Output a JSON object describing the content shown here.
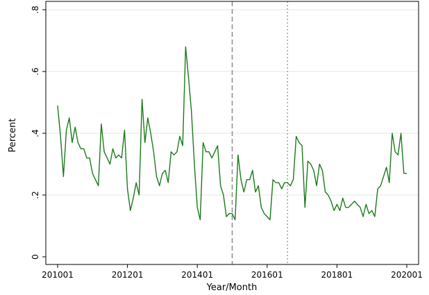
{
  "chart_data": {
    "type": "line",
    "title": "",
    "xlabel": "Year/Month",
    "ylabel": "Percent",
    "xlim": [
      "2010-01",
      "2020-01"
    ],
    "ylim": [
      0,
      0.8
    ],
    "x_tick_labels": [
      "201001",
      "201201",
      "201401",
      "201601",
      "201801",
      "202001"
    ],
    "x_tick_values": [
      "2010-01",
      "2012-01",
      "2014-01",
      "2016-01",
      "2018-01",
      "2020-01"
    ],
    "y_tick_labels": [
      "0",
      ".2",
      ".4",
      ".6",
      ".8"
    ],
    "y_tick_values": [
      0,
      0.2,
      0.4,
      0.6,
      0.8
    ],
    "grid": "horizontal",
    "reference_lines": [
      {
        "x": "2015-01",
        "style": "dashed"
      },
      {
        "x": "2016-08",
        "style": "dotted"
      }
    ],
    "line_color": "#1a7a1a",
    "x": [
      "2010-01",
      "2010-02",
      "2010-03",
      "2010-04",
      "2010-05",
      "2010-06",
      "2010-07",
      "2010-08",
      "2010-09",
      "2010-10",
      "2010-11",
      "2010-12",
      "2011-01",
      "2011-02",
      "2011-03",
      "2011-04",
      "2011-05",
      "2011-06",
      "2011-07",
      "2011-08",
      "2011-09",
      "2011-10",
      "2011-11",
      "2011-12",
      "2012-01",
      "2012-02",
      "2012-03",
      "2012-04",
      "2012-05",
      "2012-06",
      "2012-07",
      "2012-08",
      "2012-09",
      "2012-10",
      "2012-11",
      "2012-12",
      "2013-01",
      "2013-02",
      "2013-03",
      "2013-04",
      "2013-05",
      "2013-06",
      "2013-07",
      "2013-08",
      "2013-09",
      "2013-10",
      "2013-11",
      "2013-12",
      "2014-01",
      "2014-02",
      "2014-03",
      "2014-04",
      "2014-05",
      "2014-06",
      "2014-07",
      "2014-08",
      "2014-09",
      "2014-10",
      "2014-11",
      "2014-12",
      "2015-01",
      "2015-02",
      "2015-03",
      "2015-04",
      "2015-05",
      "2015-06",
      "2015-07",
      "2015-08",
      "2015-09",
      "2015-10",
      "2015-11",
      "2015-12",
      "2016-01",
      "2016-02",
      "2016-03",
      "2016-04",
      "2016-05",
      "2016-06",
      "2016-07",
      "2016-08",
      "2016-09",
      "2016-10",
      "2016-11",
      "2016-12",
      "2017-01",
      "2017-02",
      "2017-03",
      "2017-04",
      "2017-05",
      "2017-06",
      "2017-07",
      "2017-08",
      "2017-09",
      "2017-10",
      "2017-11",
      "2017-12",
      "2018-01",
      "2018-02",
      "2018-03",
      "2018-04",
      "2018-05",
      "2018-06",
      "2018-07",
      "2018-08",
      "2018-09",
      "2018-10",
      "2018-11",
      "2018-12",
      "2019-01",
      "2019-02",
      "2019-03",
      "2019-04",
      "2019-05",
      "2019-06",
      "2019-07",
      "2019-08",
      "2019-09",
      "2019-10",
      "2019-11",
      "2019-12",
      "2020-01"
    ],
    "values": [
      0.49,
      0.39,
      0.26,
      0.41,
      0.45,
      0.37,
      0.42,
      0.37,
      0.35,
      0.35,
      0.32,
      0.32,
      0.27,
      0.25,
      0.23,
      0.43,
      0.34,
      0.32,
      0.3,
      0.35,
      0.32,
      0.33,
      0.32,
      0.41,
      0.22,
      0.15,
      0.19,
      0.24,
      0.2,
      0.51,
      0.37,
      0.45,
      0.4,
      0.34,
      0.26,
      0.23,
      0.27,
      0.28,
      0.24,
      0.34,
      0.33,
      0.34,
      0.39,
      0.36,
      0.68,
      0.58,
      0.47,
      0.3,
      0.16,
      0.12,
      0.37,
      0.34,
      0.34,
      0.32,
      0.34,
      0.36,
      0.23,
      0.2,
      0.13,
      0.14,
      0.14,
      0.12,
      0.33,
      0.25,
      0.21,
      0.25,
      0.25,
      0.28,
      0.21,
      0.23,
      0.16,
      0.14,
      0.13,
      0.12,
      0.25,
      0.24,
      0.24,
      0.22,
      0.24,
      0.24,
      0.23,
      0.25,
      0.39,
      0.37,
      0.36,
      0.16,
      0.31,
      0.3,
      0.28,
      0.23,
      0.3,
      0.28,
      0.21,
      0.2,
      0.18,
      0.15,
      0.17,
      0.15,
      0.19,
      0.16,
      0.16,
      0.17,
      0.18,
      0.17,
      0.16,
      0.13,
      0.17,
      0.14,
      0.15,
      0.13,
      0.22,
      0.23,
      0.26,
      0.29,
      0.24,
      0.4,
      0.34,
      0.33,
      0.4,
      0.27,
      0.27
    ]
  }
}
